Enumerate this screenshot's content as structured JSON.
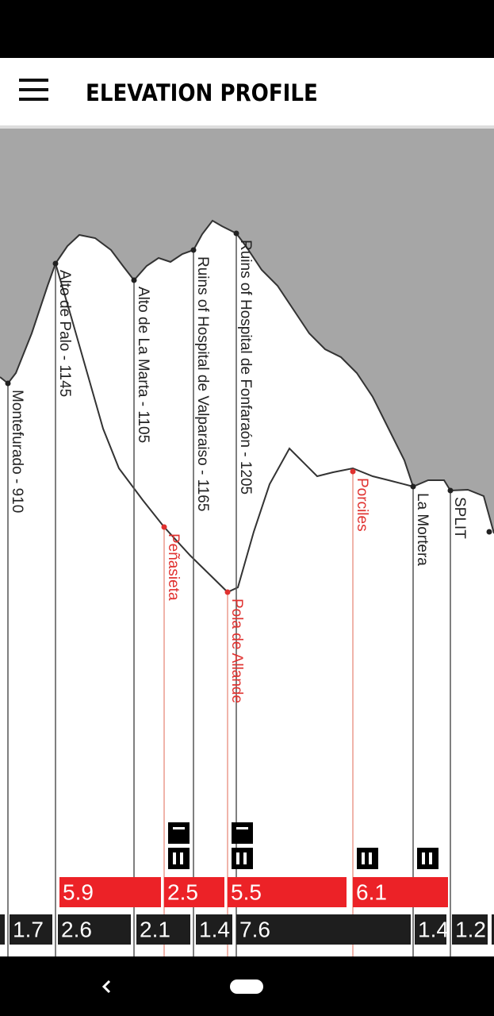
{
  "header": {
    "title": "ELEVATION PROFILE"
  },
  "waypoints": [
    "Montefurado - 910",
    "Alto de Palo - 1145",
    "Alto de La Marta - 1105",
    "Ruins of Hospital de Valparaiso - 1165",
    "Ruins of Hospital de Fonfaraón - 1205",
    "Peñasieta",
    "Pola de Allande",
    "Porciles",
    "La Mortera",
    "SPLIT"
  ],
  "stages": [
    5.9,
    2.5,
    5.5,
    6.1
  ],
  "segments": [
    1.7,
    2.6,
    2.1,
    1.4,
    7.6,
    1.4,
    1.2
  ]
}
